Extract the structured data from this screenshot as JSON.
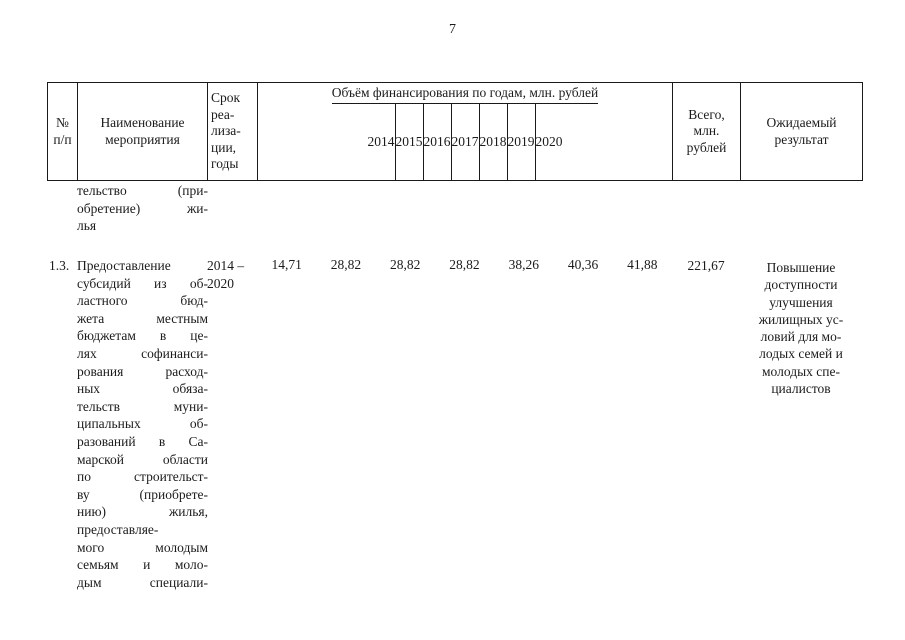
{
  "page": {
    "number": "7"
  },
  "table": {
    "headers": {
      "num": "№\nп/п",
      "name": "Наименование\nмероприятия",
      "term": "Срок\nреа-\nлиза-\nции,\nгоды",
      "finance_group": "Объём финансирования по годам, млн. рублей",
      "years": [
        "2014",
        "2015",
        "2016",
        "2017",
        "2018",
        "2019",
        "2020"
      ],
      "total": "Всего,\nмлн.\nрублей",
      "expected": "Ожидаемый\nрезультат"
    },
    "carryover_text": "тельство (при-\nобретение) жи-\nлья",
    "rows": [
      {
        "num": "1.3.",
        "name": "Предоставление\nсубсидий из об-\nластного бюд-\nжета местным\nбюджетам в це-\nлях софинанси-\nрования расход-\nных обяза-\nтельств муни-\nципальных об-\nразований в Са-\nмарской области\nпо строительст-\nву (приобрете-\nнию) жилья,\nпредоставляе-\nмого молодым\nсемьям и моло-\nдым специали-",
        "term": "2014 –\n2020",
        "values": [
          "14,71",
          "28,82",
          "28,82",
          "28,82",
          "38,26",
          "40,36",
          "41,88"
        ],
        "total": "221,67",
        "expected": "Повышение\nдоступности\nулучшения\nжилищных ус-\nловий для мо-\nлодых семей и\nмолодых спе-\nциалистов"
      }
    ]
  }
}
